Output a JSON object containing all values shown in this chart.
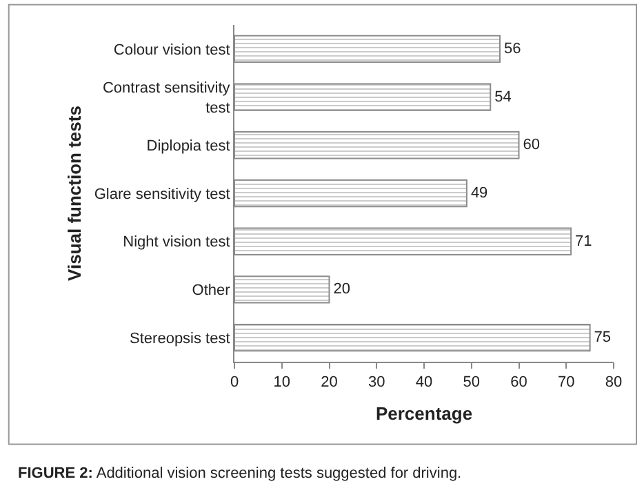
{
  "chart_data": {
    "type": "bar",
    "orientation": "horizontal",
    "categories": [
      "Colour vision test",
      "Contrast sensitivity test",
      "Diplopia test",
      "Glare sensitivity test",
      "Night vision test",
      "Other",
      "Stereopsis test"
    ],
    "values": [
      56,
      54,
      60,
      49,
      71,
      20,
      75
    ],
    "color": "#8c8c8c",
    "xlim": [
      0,
      80
    ],
    "xticks": [
      0,
      10,
      20,
      30,
      40,
      50,
      60,
      70,
      80
    ],
    "xlabel": "Percentage",
    "ylabel": "Visual function tests",
    "data_labels": true,
    "annotations": [
      "FIGURE 2: Additional vision screening tests suggested for driving."
    ]
  }
}
